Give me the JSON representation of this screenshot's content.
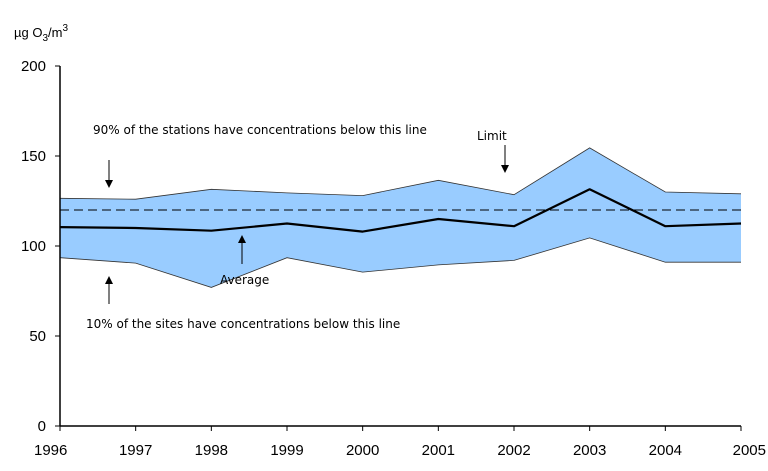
{
  "chart_data": {
    "type": "area",
    "ylabel": {
      "prefix": "µg O",
      "sub": "3",
      "mid": "/m",
      "sup": "3"
    },
    "ylim": [
      0,
      200
    ],
    "yticks": [
      0,
      50,
      100,
      150,
      200
    ],
    "x": [
      1996,
      1997,
      1998,
      1999,
      2000,
      2001,
      2002,
      2003,
      2004,
      2005
    ],
    "xtick_labels": [
      "1996",
      "1997",
      "1998",
      "1999",
      "2000",
      "2001",
      "2002",
      "2003",
      "2004",
      "2005"
    ],
    "series": [
      {
        "role": "p90",
        "values": [
          126.5,
          126,
          131.5,
          129.5,
          128,
          136.5,
          128.5,
          154.5,
          130,
          129
        ]
      },
      {
        "role": "p10",
        "values": [
          93.5,
          90.5,
          77,
          93.5,
          85.5,
          89.5,
          92,
          104.5,
          91,
          91
        ]
      },
      {
        "name": "Average",
        "values": [
          110.5,
          110,
          108.5,
          112.5,
          108,
          115,
          111,
          131.5,
          111,
          112.5
        ]
      }
    ],
    "limit": {
      "label": "Limit",
      "value": 120
    },
    "annotations": {
      "p90_text": "90% of the stations have concentrations below this line",
      "p10_text": "10% of the sites have concentrations below this line",
      "average_text": "Average",
      "limit_text": "Limit"
    },
    "grid": false,
    "legend": "none",
    "colors": {
      "band_fill": "#99ccff",
      "band_edge": "#333333",
      "average_line": "#000000",
      "limit_line": "#000000"
    }
  }
}
